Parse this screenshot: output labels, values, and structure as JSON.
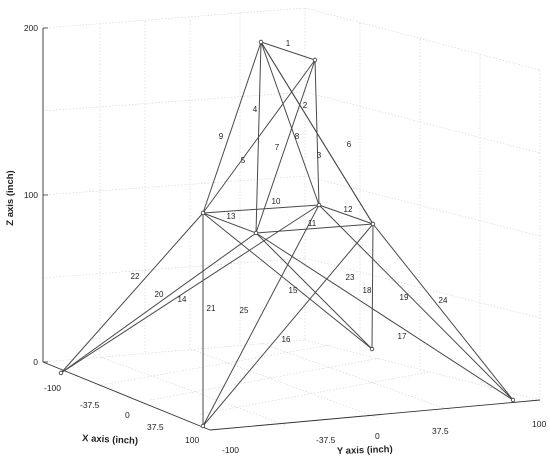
{
  "axes": {
    "x_label": "X axis (inch)",
    "y_label": "Y axis (inch)",
    "z_label": "Z axis (inch)",
    "x_ticks": [
      "-100",
      "-37.5",
      "0",
      "37.5",
      "100"
    ],
    "y_ticks": [
      "-100",
      "-37.5",
      "0",
      "37.5",
      "100"
    ],
    "z_ticks": [
      "200",
      "100",
      "0"
    ]
  },
  "structure": {
    "member_labels": [
      "1",
      "2",
      "3",
      "4",
      "5",
      "6",
      "7",
      "8",
      "9",
      "10",
      "11",
      "12",
      "13",
      "14",
      "15",
      "16",
      "17",
      "18",
      "19",
      "20",
      "21",
      "22",
      "23",
      "24",
      "25"
    ]
  }
}
